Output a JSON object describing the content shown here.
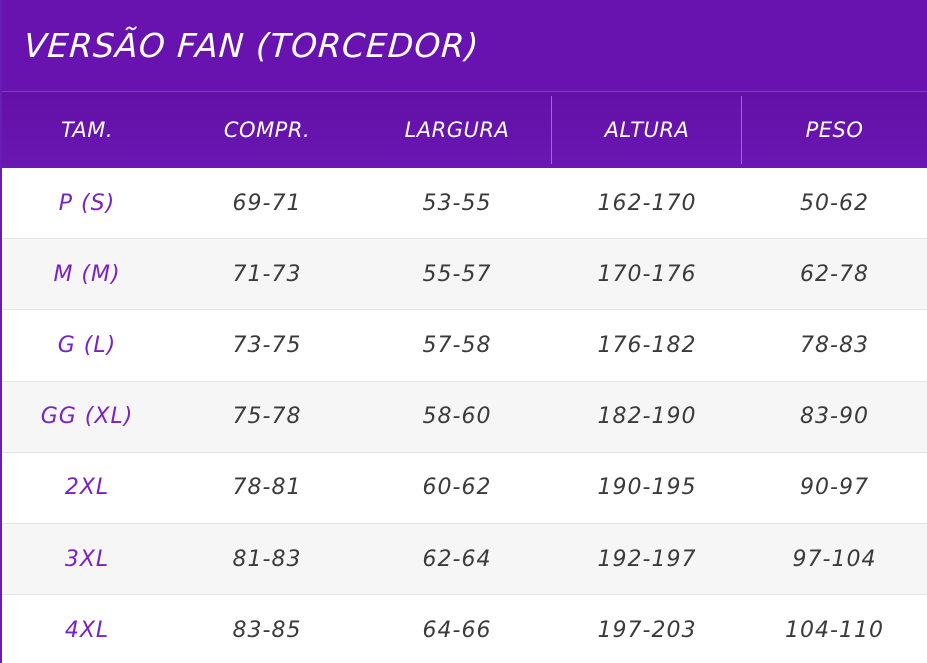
{
  "title": "VERSÃO FAN (TORCEDOR)",
  "colors": {
    "header_bg": "#6813b0",
    "size_text": "#7a22c2",
    "value_text": "#3a3a3a",
    "alt_row_bg": "#f6f6f6"
  },
  "columns": [
    "TAM.",
    "COMPR.",
    "LARGURA",
    "ALTURA",
    "PESO"
  ],
  "rows": [
    {
      "size": "P (S)",
      "compr": "69-71",
      "largura": "53-55",
      "altura": "162-170",
      "peso": "50-62"
    },
    {
      "size": "M (M)",
      "compr": "71-73",
      "largura": "55-57",
      "altura": "170-176",
      "peso": "62-78"
    },
    {
      "size": "G (L)",
      "compr": "73-75",
      "largura": "57-58",
      "altura": "176-182",
      "peso": "78-83"
    },
    {
      "size": "GG (XL)",
      "compr": "75-78",
      "largura": "58-60",
      "altura": "182-190",
      "peso": "83-90"
    },
    {
      "size": "2XL",
      "compr": "78-81",
      "largura": "60-62",
      "altura": "190-195",
      "peso": "90-97"
    },
    {
      "size": "3XL",
      "compr": "81-83",
      "largura": "62-64",
      "altura": "192-197",
      "peso": "97-104"
    },
    {
      "size": "4XL",
      "compr": "83-85",
      "largura": "64-66",
      "altura": "197-203",
      "peso": "104-110"
    }
  ]
}
